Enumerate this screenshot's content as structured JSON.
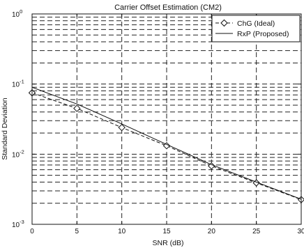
{
  "chart_data": {
    "type": "line",
    "title": "Carrier Offset Estimation (CM2)",
    "xlabel": "SNR (dB)",
    "ylabel": "Standard Deviation",
    "xlim": [
      0,
      30
    ],
    "ylim": [
      0.001,
      1
    ],
    "yscale": "log",
    "grid": true,
    "legend_position": "top-right",
    "x_ticks": [
      0,
      5,
      10,
      15,
      20,
      25,
      30
    ],
    "x_tick_labels": [
      "0",
      "5",
      "10",
      "15",
      "20",
      "25",
      "30"
    ],
    "y_ticks": [
      0.001,
      0.01,
      0.1,
      1
    ],
    "y_tick_labels": [
      {
        "base": "10",
        "exp": "-3"
      },
      {
        "base": "10",
        "exp": "-2"
      },
      {
        "base": "10",
        "exp": "-1"
      },
      {
        "base": "10",
        "exp": "0"
      }
    ],
    "x": [
      0,
      5,
      10,
      15,
      20,
      25,
      30
    ],
    "series": [
      {
        "name": "ChG (Ideal)",
        "marker": "diamond",
        "line": "dashed",
        "values": [
          0.075,
          0.045,
          0.024,
          0.0132,
          0.0068,
          0.0039,
          0.00225
        ]
      },
      {
        "name": "RxP (Proposed)",
        "marker": "none",
        "line": "solid",
        "values": [
          0.09,
          0.052,
          0.027,
          0.0138,
          0.0071,
          0.004,
          0.00228
        ]
      }
    ]
  }
}
